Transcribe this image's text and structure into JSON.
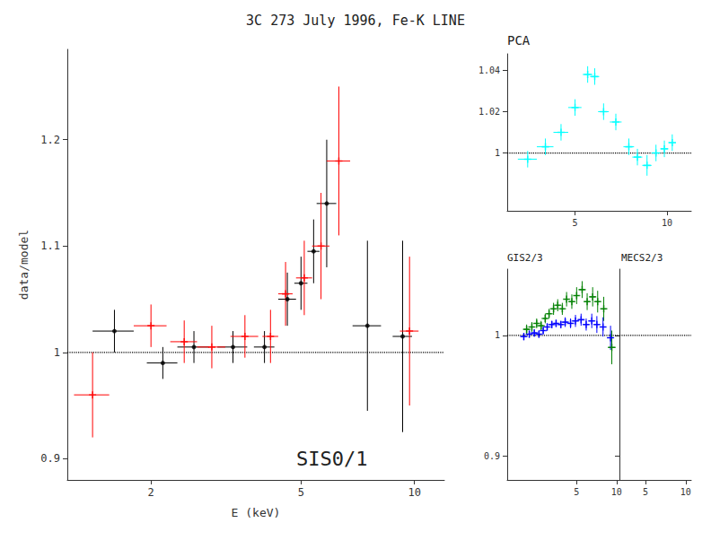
{
  "chart_data": [
    {
      "type": "scatter",
      "title": "3C 273 July 1996, Fe-K LINE",
      "xlabel": "E (keV)",
      "ylabel": "data/model",
      "annotation": "SIS0/1",
      "log": "x",
      "grid": false,
      "xlim": [
        1.2,
        12.0
      ],
      "ylim": [
        0.88,
        1.285
      ],
      "xticks": [
        2,
        5,
        10
      ],
      "yticks": [
        0.9,
        1,
        1.1,
        1.2
      ],
      "hline": 1,
      "series": [
        {
          "color": "#000000",
          "marker": "point",
          "x": [
            1.6,
            2.15,
            2.6,
            3.3,
            4.0,
            4.6,
            5.0,
            5.4,
            5.85,
            7.5,
            9.3
          ],
          "values": [
            1.02,
            0.99,
            1.005,
            1.005,
            1.005,
            1.05,
            1.065,
            1.095,
            1.14,
            1.025,
            1.015
          ],
          "xerr": [
            0.2,
            0.2,
            0.25,
            0.3,
            0.25,
            0.25,
            0.2,
            0.2,
            0.35,
            0.65,
            0.55
          ],
          "yerr": [
            0.02,
            0.015,
            0.015,
            0.015,
            0.015,
            0.025,
            0.025,
            0.03,
            0.06,
            0.08,
            0.09
          ]
        },
        {
          "color": "#ff0000",
          "marker": "plus",
          "x": [
            1.4,
            2.0,
            2.45,
            2.9,
            3.55,
            4.15,
            4.55,
            5.1,
            5.65,
            6.3,
            9.7
          ],
          "values": [
            0.96,
            1.025,
            1.01,
            1.005,
            1.015,
            1.015,
            1.055,
            1.07,
            1.1,
            1.18,
            1.02
          ],
          "xerr": [
            0.15,
            0.2,
            0.2,
            0.25,
            0.3,
            0.2,
            0.2,
            0.25,
            0.3,
            0.45,
            0.55
          ],
          "yerr": [
            0.04,
            0.02,
            0.02,
            0.02,
            0.02,
            0.025,
            0.03,
            0.035,
            0.05,
            0.07,
            0.07
          ]
        }
      ]
    },
    {
      "type": "scatter",
      "annotation": "PCA",
      "log": "x",
      "grid": false,
      "xlim": [
        3.0,
        12.0
      ],
      "ylim": [
        0.972,
        1.048
      ],
      "xticks": [
        5,
        10
      ],
      "yticks": [
        1,
        1.02,
        1.04
      ],
      "hline": 1,
      "series": [
        {
          "color": "#00ffff",
          "marker": "plus",
          "x": [
            3.5,
            4.0,
            4.5,
            5.0,
            5.5,
            5.8,
            6.2,
            6.8,
            7.5,
            8.0,
            8.6,
            9.2,
            9.8,
            10.4
          ],
          "values": [
            0.997,
            1.003,
            1.01,
            1.022,
            1.038,
            1.037,
            1.02,
            1.015,
            1.003,
            0.998,
            0.994,
            1.0,
            1.002,
            1.005
          ],
          "xerr": [
            0.25,
            0.25,
            0.25,
            0.25,
            0.2,
            0.2,
            0.25,
            0.3,
            0.3,
            0.3,
            0.3,
            0.3,
            0.3,
            0.3
          ],
          "yerr": [
            0.004,
            0.004,
            0.004,
            0.004,
            0.004,
            0.004,
            0.004,
            0.004,
            0.004,
            0.004,
            0.005,
            0.004,
            0.004,
            0.004
          ]
        }
      ]
    },
    {
      "type": "scatter",
      "annotation": "GIS2/3",
      "log": "x",
      "grid": false,
      "xlim": [
        1.5,
        10.5
      ],
      "ylim": [
        0.88,
        1.055
      ],
      "xticks": [
        5,
        10
      ],
      "yticks": [
        0.9,
        1
      ],
      "hline": 1,
      "series": [
        {
          "color": "#008000",
          "marker": "plus",
          "x": [
            2.1,
            2.3,
            2.5,
            2.7,
            2.9,
            3.1,
            3.35,
            3.6,
            3.9,
            4.2,
            4.6,
            5.0,
            5.5,
            6.0,
            6.6,
            7.2,
            8.0,
            9.2
          ],
          "values": [
            1.005,
            1.007,
            1.01,
            1.008,
            1.014,
            1.018,
            1.022,
            1.025,
            1.022,
            1.03,
            1.028,
            1.033,
            1.038,
            1.028,
            1.032,
            1.028,
            1.022,
            0.99
          ],
          "xerr": [
            0.1,
            0.1,
            0.1,
            0.1,
            0.1,
            0.12,
            0.13,
            0.13,
            0.15,
            0.18,
            0.2,
            0.22,
            0.25,
            0.28,
            0.3,
            0.33,
            0.4,
            0.6
          ],
          "yerr": [
            0.004,
            0.004,
            0.004,
            0.004,
            0.004,
            0.004,
            0.005,
            0.005,
            0.005,
            0.006,
            0.006,
            0.007,
            0.007,
            0.007,
            0.008,
            0.009,
            0.01,
            0.014
          ]
        },
        {
          "color": "#0000ff",
          "marker": "plus",
          "x": [
            2.0,
            2.2,
            2.4,
            2.6,
            2.8,
            3.0,
            3.25,
            3.5,
            3.8,
            4.1,
            4.5,
            4.9,
            5.4,
            5.9,
            6.5,
            7.1,
            7.9,
            9.0
          ],
          "values": [
            0.999,
            1.001,
            1.002,
            1.001,
            1.004,
            1.007,
            1.009,
            1.01,
            1.009,
            1.011,
            1.01,
            1.012,
            1.013,
            1.009,
            1.012,
            1.009,
            1.007,
            0.998
          ],
          "xerr": [
            0.1,
            0.1,
            0.1,
            0.1,
            0.1,
            0.12,
            0.13,
            0.13,
            0.15,
            0.18,
            0.2,
            0.22,
            0.25,
            0.28,
            0.3,
            0.33,
            0.4,
            0.5
          ],
          "yerr": [
            0.003,
            0.003,
            0.003,
            0.003,
            0.003,
            0.003,
            0.003,
            0.003,
            0.003,
            0.004,
            0.004,
            0.005,
            0.005,
            0.005,
            0.006,
            0.007,
            0.008,
            0.01
          ]
        }
      ]
    },
    {
      "type": "scatter",
      "annotation": "MECS2/3",
      "log": "x",
      "grid": false,
      "tick_labels": "x",
      "xlim": [
        3.2,
        11.0
      ],
      "ylim": [
        0.88,
        1.055
      ],
      "xticks": [
        5,
        10
      ],
      "yticks": [
        0.9,
        1
      ],
      "hline": 1,
      "series": []
    }
  ]
}
